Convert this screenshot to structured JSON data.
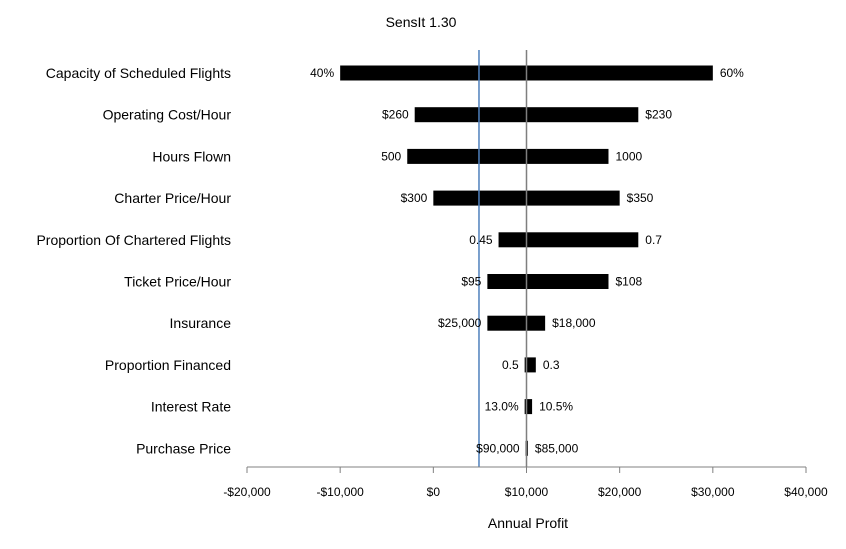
{
  "chart_data": {
    "type": "bar",
    "orientation": "horizontal",
    "subtype": "tornado",
    "title": "SensIt 1.30",
    "xlabel": "Annual Profit",
    "ylabel": "",
    "xlim": [
      -20000,
      40000
    ],
    "x_ticks": [
      -20000,
      -10000,
      0,
      10000,
      20000,
      30000,
      40000
    ],
    "x_tick_labels": [
      "-$20,000",
      "-$10,000",
      "$0",
      "$10,000",
      "$20,000",
      "$30,000",
      "$40,000"
    ],
    "base_value": 10000,
    "reference_value": 4900,
    "grid": false,
    "bar_color": "#000000",
    "base_line_color": "#7f7f7f",
    "reference_line_color": "#4f81bd",
    "categories": [
      "Capacity of Scheduled Flights",
      "Operating Cost/Hour",
      "Hours Flown",
      "Charter Price/Hour",
      "Proportion Of Chartered Flights",
      "Ticket Price/Hour",
      "Insurance",
      "Proportion Financed",
      "Interest Rate",
      "Purchase Price"
    ],
    "bars": [
      {
        "low": -10000,
        "high": 30000,
        "low_label": "40%",
        "high_label": "60%"
      },
      {
        "low": -2000,
        "high": 22000,
        "low_label": "$260",
        "high_label": "$230"
      },
      {
        "low": -2800,
        "high": 18800,
        "low_label": "500",
        "high_label": "1000"
      },
      {
        "low": 0,
        "high": 20000,
        "low_label": "$300",
        "high_label": "$350"
      },
      {
        "low": 7000,
        "high": 22000,
        "low_label": "0.45",
        "high_label": "0.7"
      },
      {
        "low": 5800,
        "high": 18800,
        "low_label": "$95",
        "high_label": "$108"
      },
      {
        "low": 5800,
        "high": 12000,
        "low_label": "$25,000",
        "high_label": "$18,000"
      },
      {
        "low": 9800,
        "high": 11000,
        "low_label": "0.5",
        "high_label": "0.3"
      },
      {
        "low": 9800,
        "high": 10600,
        "low_label": "13.0%",
        "high_label": "10.5%"
      },
      {
        "low": 9900,
        "high": 10150,
        "low_label": "$90,000",
        "high_label": "$85,000"
      }
    ]
  }
}
